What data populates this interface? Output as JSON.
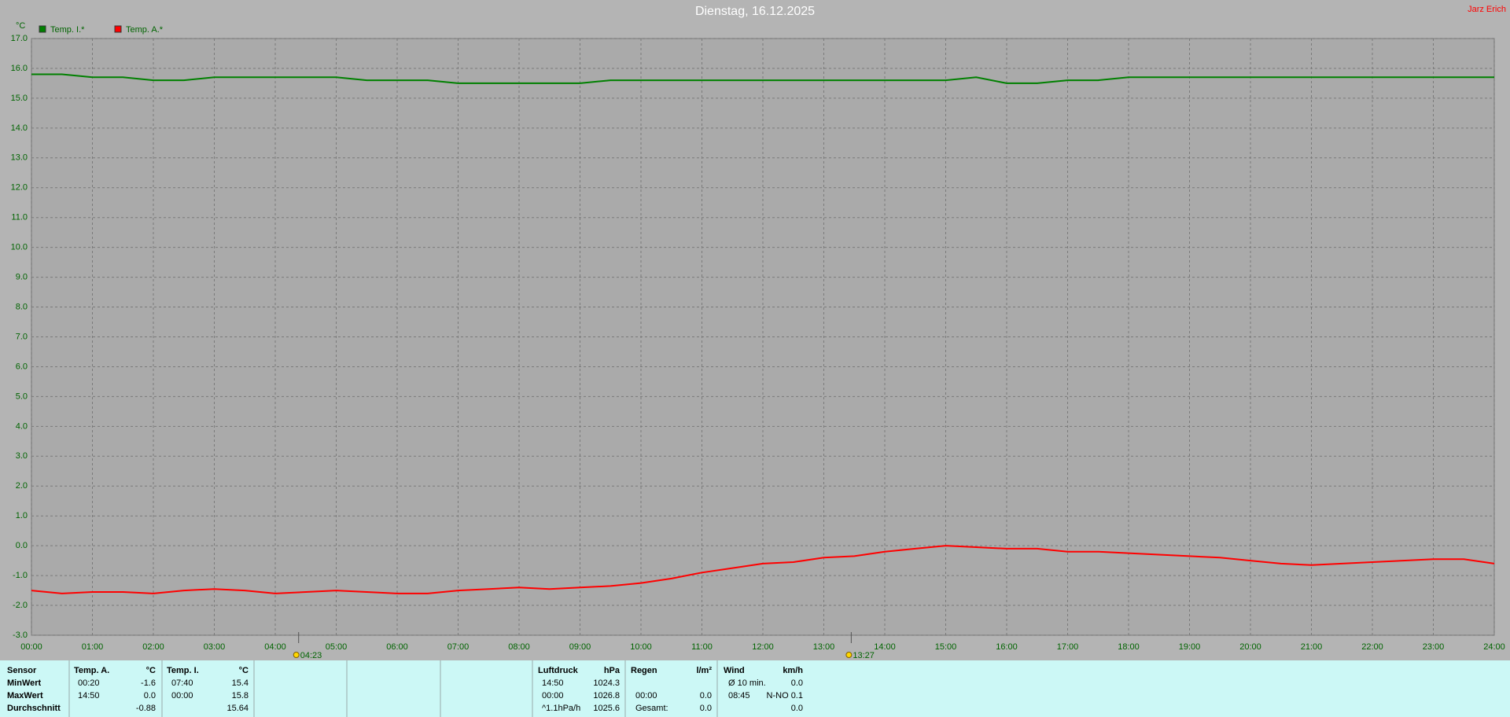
{
  "chart_data": {
    "type": "line",
    "title": "Dienstag, 16.12.2025",
    "author": "Jarz Erich",
    "y_label": "°C",
    "x": [
      0,
      0.5,
      1,
      1.5,
      2,
      2.5,
      3,
      3.5,
      4,
      4.5,
      5,
      5.5,
      6,
      6.5,
      7,
      7.5,
      8,
      8.5,
      9,
      9.5,
      10,
      10.5,
      11,
      11.5,
      12,
      12.5,
      13,
      13.5,
      14,
      14.5,
      15,
      15.5,
      16,
      16.5,
      17,
      17.5,
      18,
      18.5,
      19,
      19.5,
      20,
      20.5,
      21,
      21.5,
      22,
      22.5,
      23,
      23.5,
      24
    ],
    "series": [
      {
        "name": "Temp. I.*",
        "color": "#008000",
        "values": [
          15.8,
          15.8,
          15.7,
          15.7,
          15.6,
          15.6,
          15.7,
          15.7,
          15.7,
          15.7,
          15.7,
          15.6,
          15.6,
          15.6,
          15.5,
          15.5,
          15.5,
          15.5,
          15.5,
          15.6,
          15.6,
          15.6,
          15.6,
          15.6,
          15.6,
          15.6,
          15.6,
          15.6,
          15.6,
          15.6,
          15.6,
          15.7,
          15.5,
          15.5,
          15.6,
          15.6,
          15.7,
          15.7,
          15.7,
          15.7,
          15.7,
          15.7,
          15.7,
          15.7,
          15.7,
          15.7,
          15.7,
          15.7,
          15.7
        ]
      },
      {
        "name": "Temp. A.*",
        "color": "#ff0000",
        "values": [
          -1.5,
          -1.6,
          -1.55,
          -1.55,
          -1.6,
          -1.5,
          -1.45,
          -1.5,
          -1.6,
          -1.55,
          -1.5,
          -1.55,
          -1.6,
          -1.6,
          -1.5,
          -1.45,
          -1.4,
          -1.45,
          -1.4,
          -1.35,
          -1.25,
          -1.1,
          -0.9,
          -0.75,
          -0.6,
          -0.55,
          -0.4,
          -0.35,
          -0.2,
          -0.1,
          0.0,
          -0.05,
          -0.1,
          -0.1,
          -0.2,
          -0.2,
          -0.25,
          -0.3,
          -0.35,
          -0.4,
          -0.5,
          -0.6,
          -0.65,
          -0.6,
          -0.55,
          -0.5,
          -0.45,
          -0.45,
          -0.6
        ]
      }
    ],
    "xlim": [
      0,
      24
    ],
    "xticks": [
      {
        "value": 0,
        "label": "00:00"
      },
      {
        "value": 1,
        "label": "01:00"
      },
      {
        "value": 2,
        "label": "02:00"
      },
      {
        "value": 3,
        "label": "03:00"
      },
      {
        "value": 4,
        "label": "04:00"
      },
      {
        "value": 5,
        "label": "05:00"
      },
      {
        "value": 6,
        "label": "06:00"
      },
      {
        "value": 7,
        "label": "07:00"
      },
      {
        "value": 8,
        "label": "08:00"
      },
      {
        "value": 9,
        "label": "09:00"
      },
      {
        "value": 10,
        "label": "10:00"
      },
      {
        "value": 11,
        "label": "11:00"
      },
      {
        "value": 12,
        "label": "12:00"
      },
      {
        "value": 13,
        "label": "13:00"
      },
      {
        "value": 14,
        "label": "14:00"
      },
      {
        "value": 15,
        "label": "15:00"
      },
      {
        "value": 16,
        "label": "16:00"
      },
      {
        "value": 17,
        "label": "17:00"
      },
      {
        "value": 18,
        "label": "18:00"
      },
      {
        "value": 19,
        "label": "19:00"
      },
      {
        "value": 20,
        "label": "20:00"
      },
      {
        "value": 21,
        "label": "21:00"
      },
      {
        "value": 22,
        "label": "22:00"
      },
      {
        "value": 23,
        "label": "23:00"
      },
      {
        "value": 24,
        "label": "24:00"
      }
    ],
    "ylim": [
      -3,
      17
    ],
    "yticks": [
      {
        "value": -3,
        "label": "-3.0"
      },
      {
        "value": -2,
        "label": "-2.0"
      },
      {
        "value": -1,
        "label": "-1.0"
      },
      {
        "value": 0,
        "label": "0.0"
      },
      {
        "value": 1,
        "label": "1.0"
      },
      {
        "value": 2,
        "label": "2.0"
      },
      {
        "value": 3,
        "label": "3.0"
      },
      {
        "value": 4,
        "label": "4.0"
      },
      {
        "value": 5,
        "label": "5.0"
      },
      {
        "value": 6,
        "label": "6.0"
      },
      {
        "value": 7,
        "label": "7.0"
      },
      {
        "value": 8,
        "label": "8.0"
      },
      {
        "value": 9,
        "label": "9.0"
      },
      {
        "value": 10,
        "label": "10.0"
      },
      {
        "value": 11,
        "label": "11.0"
      },
      {
        "value": 12,
        "label": "12.0"
      },
      {
        "value": 13,
        "label": "13.0"
      },
      {
        "value": 14,
        "label": "14.0"
      },
      {
        "value": 15,
        "label": "15.0"
      },
      {
        "value": 16,
        "label": "16.0"
      },
      {
        "value": 17,
        "label": "17.0"
      }
    ],
    "grid": true,
    "annotations": [
      {
        "x": 4.3833,
        "label": "04:23"
      },
      {
        "x": 13.45,
        "label": "13:27"
      }
    ]
  },
  "table": {
    "row_labels": [
      "Sensor",
      "MinWert",
      "MaxWert",
      "Durchschnitt"
    ],
    "groups": [
      {
        "header": [
          "Temp. A.",
          "°C"
        ],
        "rows": [
          {
            "time": "00:20",
            "value": "-1.6"
          },
          {
            "time": "14:50",
            "value": "0.0"
          },
          {
            "value": "-0.88"
          }
        ]
      },
      {
        "header": [
          "Temp. I.",
          "°C"
        ],
        "rows": [
          {
            "time": "07:40",
            "value": "15.4"
          },
          {
            "time": "00:00",
            "value": "15.8"
          },
          {
            "value": "15.64"
          }
        ]
      },
      {
        "header": [
          "Luftdruck",
          "hPa"
        ],
        "rows": [
          {
            "time": "14:50",
            "value": "1024.3"
          },
          {
            "time": "00:00",
            "value": "1026.8"
          },
          {
            "time": "^1.1hPa/h",
            "value": "1025.6"
          }
        ]
      },
      {
        "header": [
          "Regen",
          "l/m²"
        ],
        "rows": [
          null,
          {
            "time": "00:00",
            "value": "0.0"
          },
          {
            "time": "Gesamt:",
            "value": "0.0"
          }
        ]
      },
      {
        "header": [
          "Wind",
          "km/h"
        ],
        "rows": [
          {
            "time": "Ø 10 min.",
            "value": "0.0"
          },
          {
            "time": "08:45",
            "value": "N-NO 0.1"
          },
          {
            "value": "0.0"
          }
        ]
      }
    ]
  }
}
